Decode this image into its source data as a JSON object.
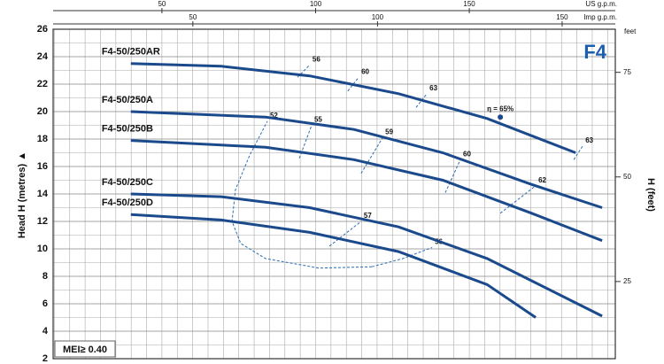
{
  "chart_data": {
    "type": "line",
    "title": "F4",
    "y_label": "Head H (metres) ▲",
    "y2_label": "H (feet)",
    "y2_unit": "feet",
    "x_label": "US g.p.m.",
    "x2_label": "Imp g.p.m.",
    "badge": "MEI≥ 0.40",
    "xlim": [
      14.6,
      197.5
    ],
    "xticks": [
      50,
      100,
      150
    ],
    "x2lim": [
      12.16,
      164.4
    ],
    "x2ticks": [
      50,
      100,
      150
    ],
    "ylim": [
      2,
      26
    ],
    "yticks": [
      2,
      4,
      6,
      8,
      10,
      12,
      14,
      16,
      18,
      20,
      22,
      24,
      26
    ],
    "y2lim": [
      6.56,
      85.3
    ],
    "y2ticks": [
      25,
      50,
      75
    ],
    "grid": true,
    "xgrid": [
      15,
      20,
      25,
      30,
      35,
      40,
      45,
      50,
      55,
      60,
      65,
      70,
      75,
      80,
      85,
      90,
      95,
      100,
      105,
      110,
      115,
      120,
      125,
      130,
      135,
      140,
      145,
      150,
      155,
      160,
      165,
      170,
      175,
      180,
      185,
      190,
      195
    ],
    "ygrid": [
      3,
      5,
      7,
      9,
      11,
      13,
      15,
      17,
      19,
      21,
      23,
      25
    ],
    "series": [
      {
        "name": "F4-50/250AR",
        "color": "#1b4a8c",
        "x": [
          39.9,
          69.3,
          98.1,
          127,
          155.8,
          184.6
        ],
        "values": [
          23.5,
          23.3,
          22.6,
          21.3,
          19.5,
          17.0
        ]
      },
      {
        "name": "F4-50/250A",
        "color": "#1b4a8c",
        "x": [
          39.9,
          83.7,
          112.5,
          141.4,
          170.2,
          193.2
        ],
        "values": [
          20.0,
          19.6,
          18.7,
          17.0,
          14.7,
          13.0
        ]
      },
      {
        "name": "F4-50/250B",
        "color": "#1b4a8c",
        "x": [
          39.9,
          83.7,
          112.5,
          141.4,
          170.2,
          193.2
        ],
        "values": [
          17.9,
          17.4,
          16.5,
          15.0,
          12.6,
          10.6
        ]
      },
      {
        "name": "F4-50/250C",
        "color": "#1b4a8c",
        "x": [
          39.9,
          69.3,
          98.1,
          127,
          155.8,
          193.2
        ],
        "values": [
          14.0,
          13.8,
          13.0,
          11.6,
          9.3,
          5.1
        ]
      },
      {
        "name": "F4-50/250D",
        "color": "#1b4a8c",
        "x": [
          39.9,
          69.3,
          98.1,
          127,
          155.8,
          171.6
        ],
        "values": [
          12.5,
          12.1,
          11.2,
          9.8,
          7.4,
          5.0
        ]
      }
    ],
    "efficiency_color": "#2b6cb3",
    "efficiency_lines": [
      {
        "label": "56",
        "x": [
          94.1,
          98.1
        ],
        "values": [
          22.5,
          23.4
        ]
      },
      {
        "label": "60",
        "x": [
          110.5,
          114.0
        ],
        "values": [
          21.5,
          22.5
        ]
      },
      {
        "label": "63",
        "x": [
          132.7,
          136.2
        ],
        "values": [
          20.3,
          21.3
        ]
      },
      {
        "label": "63",
        "x": [
          184.0,
          186.9
        ],
        "values": [
          16.5,
          17.5
        ]
      },
      {
        "label": "52",
        "x": [
          118.3,
          101,
          83.7,
          75.6,
          72.8,
          73.9,
          78.5,
          84.3
        ],
        "values": [
          8.7,
          8.6,
          9.3,
          10.4,
          12.0,
          14.3,
          16.8,
          19.3
        ]
      },
      {
        "label": "55",
        "x": [
          94.7,
          98.7
        ],
        "values": [
          16.6,
          19.0
        ]
      },
      {
        "label": "59",
        "x": [
          114.8,
          121.8
        ],
        "values": [
          15.5,
          18.1
        ]
      },
      {
        "label": "60",
        "x": [
          142.2,
          147.1
        ],
        "values": [
          14.1,
          16.5
        ]
      },
      {
        "label": "62",
        "x": [
          160.1,
          171.6
        ],
        "values": [
          12.6,
          14.6
        ]
      },
      {
        "label": "57",
        "x": [
          104.5,
          114.8
        ],
        "values": [
          10.2,
          12.0
        ]
      },
      {
        "label": "56",
        "x": [
          118.3,
          128.4,
          137.9
        ],
        "values": [
          8.7,
          9.3,
          10.1
        ]
      }
    ],
    "best_efficiency": {
      "label": "η = 65%",
      "x": 160.1,
      "y": 19.6
    }
  }
}
